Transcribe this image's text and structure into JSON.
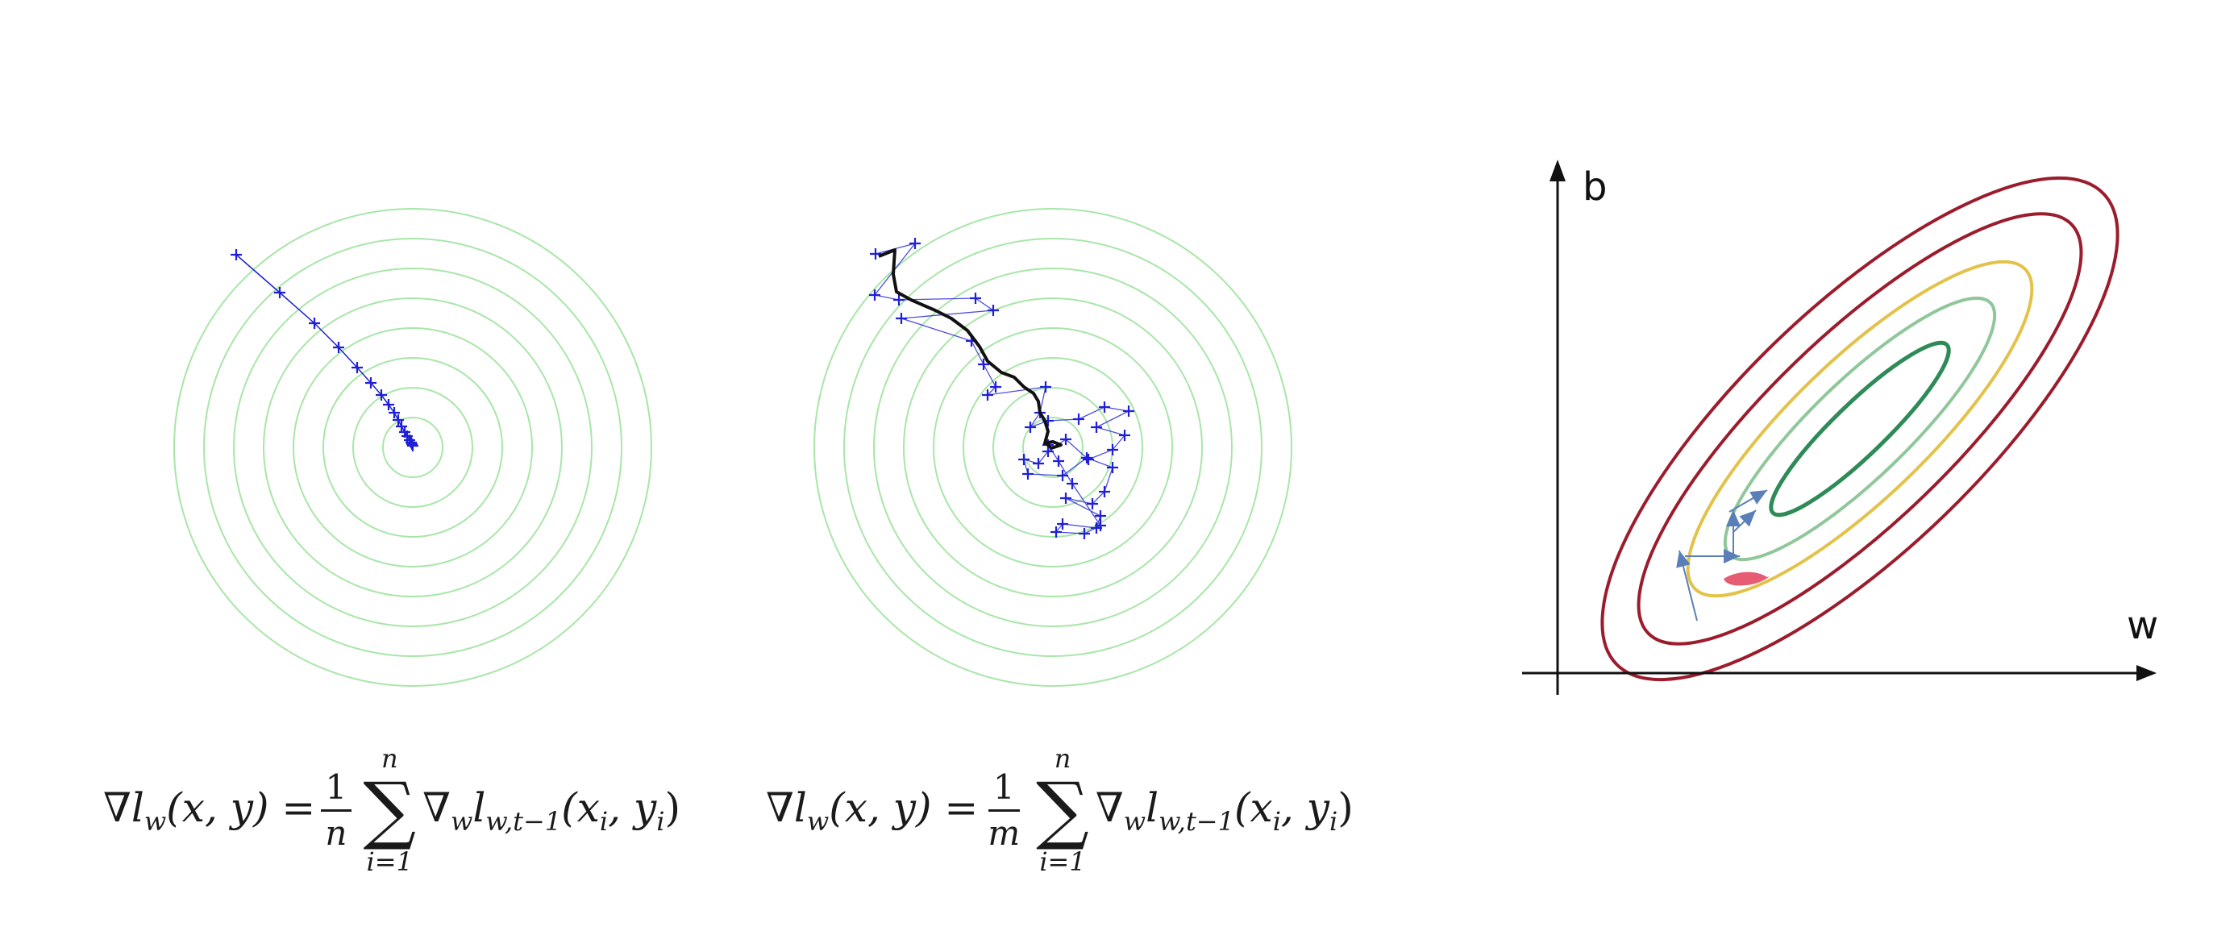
{
  "panels": [
    {
      "id": "full-batch",
      "formula": {
        "lhs": "∇l",
        "lhs_sub": "w",
        "lhs_args": "(x, y) =",
        "frac_num": "1",
        "frac_den": "n",
        "sum_upper": "n",
        "sum_lower": "i=1",
        "rhs": "∇",
        "rhs_sub": "w",
        "rhs_l": "l",
        "rhs_l_sub": "w,t−1",
        "rhs_args": "(x",
        "rhs_args_sub_i": "i",
        "rhs_args_mid": ", y",
        "rhs_args_sub_i2": "i",
        "rhs_args_end": ")"
      }
    },
    {
      "id": "mini-batch",
      "formula": {
        "lhs": "∇l",
        "lhs_sub": "w",
        "lhs_args": "(x, y) =",
        "frac_num": "1",
        "frac_den": "m",
        "sum_upper": "n",
        "sum_lower": "i=1",
        "rhs": "∇",
        "rhs_sub": "w",
        "rhs_l": "l",
        "rhs_l_sub": "w,t−1",
        "rhs_args": "(x",
        "rhs_args_sub_i": "i",
        "rhs_args_mid": ", y",
        "rhs_args_sub_i2": "i",
        "rhs_args_end": ")"
      }
    }
  ],
  "ellipse_plot": {
    "y_axis_label": "b",
    "x_axis_label": "w"
  },
  "colors": {
    "contour_circle": "#a8e6a8",
    "path_blue": "#1f1fd6",
    "path_black": "#111111",
    "ellipse_outer": "#9b1c2c",
    "ellipse_yellow": "#e3c24a",
    "ellipse_light_green": "#8fc79a",
    "ellipse_dark_green": "#2e8b57",
    "arrow_blue": "#5a7fb8",
    "red_blob": "#e0405a",
    "axis": "#111111"
  }
}
